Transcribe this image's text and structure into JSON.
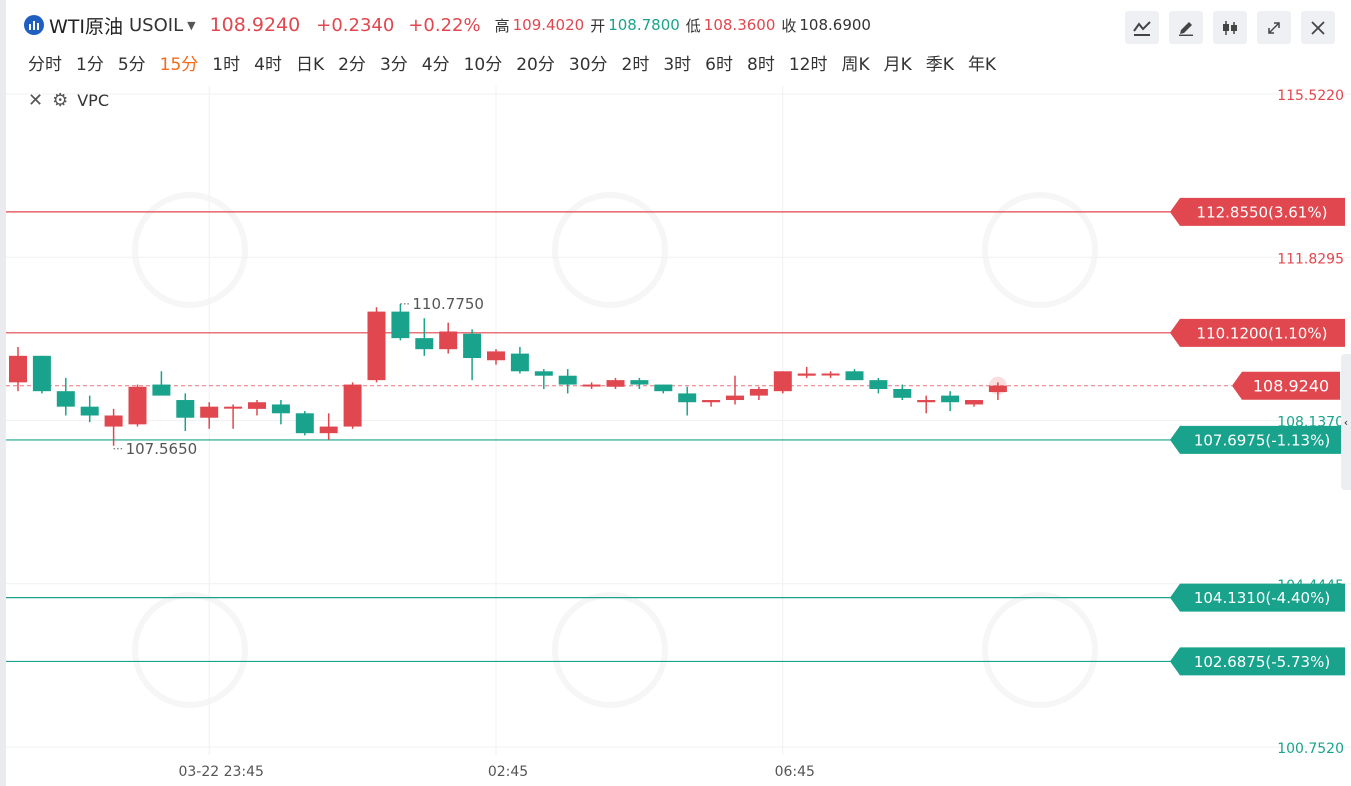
{
  "header": {
    "symbol_name": "WTI原油",
    "symbol_code": "USOIL",
    "last_price": "108.9240",
    "change": "+0.2340",
    "change_pct": "+0.22%",
    "high_label": "高",
    "high": "109.4020",
    "open_label": "开",
    "open": "108.7800",
    "low_label": "低",
    "low": "108.3600",
    "close_label": "收",
    "close": "108.6900"
  },
  "toolbar": {
    "icons": [
      "line-chart-icon",
      "pencil-icon",
      "candlestick-icon",
      "fullscreen-icon",
      "close-icon"
    ]
  },
  "periods": [
    "分时",
    "1分",
    "5分",
    "15分",
    "1时",
    "4时",
    "日K",
    "2分",
    "3分",
    "4分",
    "10分",
    "20分",
    "30分",
    "2时",
    "3时",
    "6时",
    "8时",
    "12时",
    "周K",
    "月K",
    "季K",
    "年K"
  ],
  "active_period": "15分",
  "indicator": {
    "name": "VPC"
  },
  "colors": {
    "up": "#e0474e",
    "down": "#1aa38c",
    "active_period": "#f26a1b"
  },
  "chart_data": {
    "type": "candlestick",
    "ylim": [
      100.752,
      115.522
    ],
    "y_ticks": [
      {
        "label": "115.5220",
        "value": 115.522,
        "color": "#e0474e"
      },
      {
        "label": "111.8295",
        "value": 111.8295,
        "color": "#e0474e"
      },
      {
        "label": "108.1370",
        "value": 108.137,
        "color": "#1aa38c"
      },
      {
        "label": "104.4445",
        "value": 104.4445,
        "color": "#1aa38c"
      },
      {
        "label": "100.7520",
        "value": 100.752,
        "color": "#1aa38c"
      }
    ],
    "x_ticks": [
      {
        "label": "03-22 23:45",
        "index": 8
      },
      {
        "label": "02:45",
        "index": 20
      },
      {
        "label": "06:45",
        "index": 32
      }
    ],
    "levels": [
      {
        "label": "112.8550(3.61%)",
        "value": 112.855,
        "color": "#e0474e"
      },
      {
        "label": "110.1200(1.10%)",
        "value": 110.12,
        "color": "#e0474e"
      },
      {
        "label": "107.6975(-1.13%)",
        "value": 107.6975,
        "color": "#1aa38c"
      },
      {
        "label": "104.1310(-4.40%)",
        "value": 104.131,
        "color": "#1aa38c"
      },
      {
        "label": "102.6875(-5.73%)",
        "value": 102.6875,
        "color": "#1aa38c"
      }
    ],
    "current_price": {
      "label": "108.9240",
      "value": 108.924
    },
    "annotations": [
      {
        "label": "110.7750",
        "value": 110.775,
        "index": 16
      },
      {
        "label": "107.5650",
        "value": 107.565,
        "index": 4
      }
    ],
    "candles": [
      {
        "o": 109.0,
        "h": 109.8,
        "l": 108.8,
        "c": 109.6
      },
      {
        "o": 109.6,
        "h": 109.6,
        "l": 108.75,
        "c": 108.8
      },
      {
        "o": 108.8,
        "h": 109.1,
        "l": 108.25,
        "c": 108.45
      },
      {
        "o": 108.45,
        "h": 108.7,
        "l": 108.1,
        "c": 108.25
      },
      {
        "o": 108.0,
        "h": 108.4,
        "l": 107.565,
        "c": 108.25
      },
      {
        "o": 108.05,
        "h": 108.95,
        "l": 108.0,
        "c": 108.9
      },
      {
        "o": 108.95,
        "h": 109.25,
        "l": 108.75,
        "c": 108.7
      },
      {
        "o": 108.6,
        "h": 108.75,
        "l": 107.9,
        "c": 108.2
      },
      {
        "o": 108.2,
        "h": 108.55,
        "l": 107.95,
        "c": 108.45
      },
      {
        "o": 108.45,
        "h": 108.5,
        "l": 107.95,
        "c": 108.45
      },
      {
        "o": 108.4,
        "h": 108.6,
        "l": 108.25,
        "c": 108.55
      },
      {
        "o": 108.5,
        "h": 108.6,
        "l": 108.05,
        "c": 108.3
      },
      {
        "o": 108.3,
        "h": 108.35,
        "l": 107.8,
        "c": 107.85
      },
      {
        "o": 107.85,
        "h": 108.3,
        "l": 107.7,
        "c": 108.0
      },
      {
        "o": 108.0,
        "h": 109.0,
        "l": 107.95,
        "c": 108.95
      },
      {
        "o": 109.05,
        "h": 110.7,
        "l": 109.0,
        "c": 110.6
      },
      {
        "o": 110.6,
        "h": 110.775,
        "l": 109.95,
        "c": 110.0
      },
      {
        "o": 110.0,
        "h": 110.45,
        "l": 109.6,
        "c": 109.75
      },
      {
        "o": 109.75,
        "h": 110.35,
        "l": 109.65,
        "c": 110.15
      },
      {
        "o": 110.1,
        "h": 110.2,
        "l": 109.05,
        "c": 109.55
      },
      {
        "o": 109.5,
        "h": 109.75,
        "l": 109.4,
        "c": 109.7
      },
      {
        "o": 109.65,
        "h": 109.8,
        "l": 109.2,
        "c": 109.25
      },
      {
        "o": 109.25,
        "h": 109.3,
        "l": 108.85,
        "c": 109.15
      },
      {
        "o": 109.15,
        "h": 109.3,
        "l": 108.75,
        "c": 108.95
      },
      {
        "o": 108.95,
        "h": 109.0,
        "l": 108.85,
        "c": 108.95
      },
      {
        "o": 108.9,
        "h": 109.1,
        "l": 108.85,
        "c": 109.05
      },
      {
        "o": 109.05,
        "h": 109.1,
        "l": 108.85,
        "c": 108.95
      },
      {
        "o": 108.95,
        "h": 108.95,
        "l": 108.75,
        "c": 108.8
      },
      {
        "o": 108.75,
        "h": 108.9,
        "l": 108.25,
        "c": 108.55
      },
      {
        "o": 108.55,
        "h": 108.6,
        "l": 108.45,
        "c": 108.6
      },
      {
        "o": 108.6,
        "h": 109.15,
        "l": 108.5,
        "c": 108.7
      },
      {
        "o": 108.7,
        "h": 108.9,
        "l": 108.6,
        "c": 108.85
      },
      {
        "o": 108.8,
        "h": 109.25,
        "l": 108.75,
        "c": 109.25
      },
      {
        "o": 109.15,
        "h": 109.35,
        "l": 109.1,
        "c": 109.2
      },
      {
        "o": 109.2,
        "h": 109.25,
        "l": 109.1,
        "c": 109.2
      },
      {
        "o": 109.25,
        "h": 109.3,
        "l": 109.05,
        "c": 109.05
      },
      {
        "o": 109.05,
        "h": 109.1,
        "l": 108.75,
        "c": 108.85
      },
      {
        "o": 108.85,
        "h": 108.95,
        "l": 108.6,
        "c": 108.65
      },
      {
        "o": 108.55,
        "h": 108.7,
        "l": 108.3,
        "c": 108.6
      },
      {
        "o": 108.7,
        "h": 108.8,
        "l": 108.35,
        "c": 108.55
      },
      {
        "o": 108.5,
        "h": 108.6,
        "l": 108.45,
        "c": 108.6
      },
      {
        "o": 108.78,
        "h": 109.0,
        "l": 108.6,
        "c": 108.924
      }
    ]
  }
}
